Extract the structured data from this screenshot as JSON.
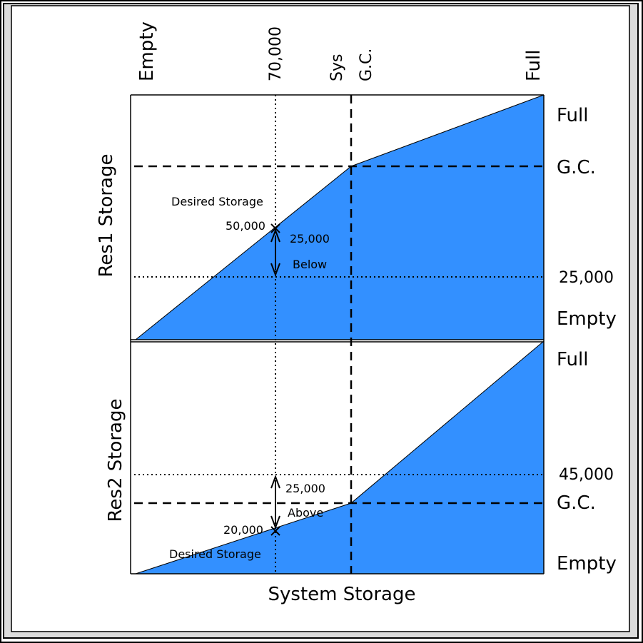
{
  "top_labels": {
    "empty": "Empty",
    "seventy": "70,000",
    "sys": "Sys",
    "gc": "G.C.",
    "full": "Full"
  },
  "axis_labels": {
    "res1": "Res1 Storage",
    "res2": "Res2 Storage",
    "system": "System Storage"
  },
  "right_labels_top": {
    "full": "Full",
    "gc": "G.C.",
    "v25000": "25,000",
    "empty": "Empty"
  },
  "right_labels_bottom": {
    "full": "Full",
    "v45000": "45,000",
    "gc": "G.C.",
    "empty": "Empty"
  },
  "top_panel": {
    "desired": "Desired Storage",
    "value": "50,000",
    "delta": "25,000",
    "direction": "Below"
  },
  "bottom_panel": {
    "delta": "25,000",
    "direction": "Above",
    "value": "20,000",
    "desired": "Desired Storage"
  },
  "colors": {
    "fill": "#3390ff",
    "frame_bg": "#dcdcdc"
  }
}
